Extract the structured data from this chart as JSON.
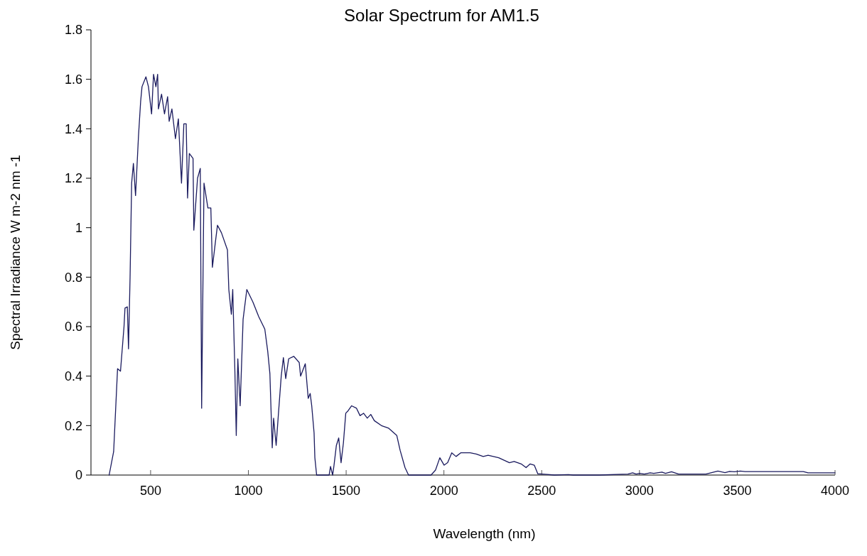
{
  "chart_data": {
    "type": "line",
    "title": "Solar Spectrum for AM1.5",
    "xlabel": "Wavelength (nm)",
    "ylabel": "Spectral Irradiance W m-2 nm -1",
    "xlim": [
      195,
      4000
    ],
    "xticks": [
      500,
      1000,
      1500,
      2000,
      2500,
      3000,
      3500,
      4000
    ],
    "ylim": [
      0,
      1.8
    ],
    "yticks": [
      0,
      0.2,
      0.4,
      0.6,
      0.8,
      1,
      1.2,
      1.4,
      1.6,
      1.8
    ],
    "grid": false,
    "marker": "none",
    "line_style": "solid",
    "series": [
      {
        "color": "#1a1a5e",
        "x": [
          288,
          311,
          331,
          346,
          364,
          369,
          381,
          387,
          395,
          403,
          412,
          423,
          438,
          449,
          456,
          476,
          489,
          505,
          515,
          527,
          536,
          540,
          556,
          571,
          587,
          595,
          609,
          627,
          642,
          658,
          670,
          682,
          689,
          698,
          717,
          721,
          740,
          754,
          761,
          773,
          793,
          808,
          816,
          831,
          842,
          862,
          893,
          900,
          913,
          920,
          931,
          938,
          946,
          958,
          973,
          992,
          1023,
          1053,
          1084,
          1099,
          1110,
          1122,
          1129,
          1142,
          1153,
          1168,
          1179,
          1191,
          1206,
          1232,
          1260,
          1267,
          1291,
          1306,
          1316,
          1324,
          1336,
          1340,
          1349,
          1413,
          1420,
          1431,
          1438,
          1450,
          1462,
          1474,
          1486,
          1498,
          1510,
          1528,
          1553,
          1571,
          1589,
          1608,
          1626,
          1644,
          1680,
          1716,
          1759,
          1776,
          1801,
          1819,
          1934,
          1957,
          1979,
          2001,
          2019,
          2040,
          2062,
          2086,
          2134,
          2165,
          2201,
          2226,
          2280,
          2335,
          2359,
          2395,
          2420,
          2441,
          2462,
          2480,
          2504,
          2565,
          2637,
          2661,
          2794,
          2941,
          2965,
          2983,
          3001,
          3025,
          3055,
          3073,
          3115,
          3133,
          3164,
          3200,
          3340,
          3401,
          3437,
          3461,
          3485,
          3516,
          3540,
          3838,
          3862,
          4000
        ],
        "values": [
          0,
          0.095,
          0.43,
          0.42,
          0.6,
          0.675,
          0.68,
          0.51,
          0.8,
          1.18,
          1.26,
          1.13,
          1.37,
          1.51,
          1.57,
          1.61,
          1.57,
          1.46,
          1.62,
          1.57,
          1.62,
          1.48,
          1.54,
          1.46,
          1.53,
          1.43,
          1.48,
          1.36,
          1.44,
          1.18,
          1.42,
          1.42,
          1.12,
          1.3,
          1.28,
          0.99,
          1.2,
          1.24,
          0.27,
          1.18,
          1.08,
          1.08,
          0.84,
          0.94,
          1.01,
          0.98,
          0.91,
          0.75,
          0.65,
          0.75,
          0.42,
          0.16,
          0.47,
          0.28,
          0.63,
          0.75,
          0.7,
          0.64,
          0.59,
          0.5,
          0.41,
          0.11,
          0.23,
          0.12,
          0.24,
          0.4,
          0.475,
          0.39,
          0.47,
          0.48,
          0.455,
          0.4,
          0.45,
          0.31,
          0.33,
          0.28,
          0.17,
          0.07,
          0,
          0,
          0.035,
          0,
          0.04,
          0.12,
          0.15,
          0.05,
          0.13,
          0.25,
          0.26,
          0.28,
          0.27,
          0.24,
          0.25,
          0.23,
          0.245,
          0.22,
          0.2,
          0.19,
          0.16,
          0.1,
          0.03,
          0,
          0,
          0.02,
          0.07,
          0.04,
          0.05,
          0.09,
          0.075,
          0.09,
          0.09,
          0.085,
          0.075,
          0.08,
          0.07,
          0.05,
          0.055,
          0.045,
          0.03,
          0.045,
          0.04,
          0.005,
          0.004,
          0,
          0.002,
          0,
          0,
          0.004,
          0.009,
          0.004,
          0.007,
          0.004,
          0.009,
          0.007,
          0.012,
          0.007,
          0.013,
          0.004,
          0.004,
          0.016,
          0.01,
          0.015,
          0.013,
          0.016,
          0.014,
          0.014,
          0.009,
          0.009
        ]
      }
    ]
  }
}
